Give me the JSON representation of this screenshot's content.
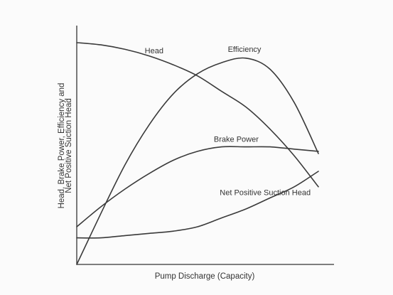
{
  "chart_data": {
    "type": "line",
    "title": "",
    "xlabel": "Pump Discharge (Capacity)",
    "ylabel_lines": [
      "Head, Brake Power, Efficiency and",
      "Net Positive Suction Head"
    ],
    "xlim": [
      0,
      100
    ],
    "ylim": [
      0,
      100
    ],
    "grid": false,
    "legend": "none",
    "x": [
      0,
      10,
      20,
      30,
      40,
      50,
      60,
      70,
      80,
      90,
      100
    ],
    "series": [
      {
        "name": "Head",
        "values": [
          100,
          99,
          97,
          94,
          90,
          85,
          78,
          71,
          61,
          49,
          35
        ]
      },
      {
        "name": "Efficiency",
        "values": [
          0,
          23,
          45,
          63,
          77,
          86,
          91,
          93,
          88,
          73,
          50
        ]
      },
      {
        "name": "Brake Power",
        "values": [
          17,
          26,
          34,
          41,
          47,
          51,
          53,
          53,
          53,
          52,
          51
        ]
      },
      {
        "name": "Net Positive Suction Head",
        "values": [
          12,
          12,
          13,
          14,
          15,
          17,
          21,
          25,
          30,
          35,
          42
        ]
      }
    ]
  }
}
